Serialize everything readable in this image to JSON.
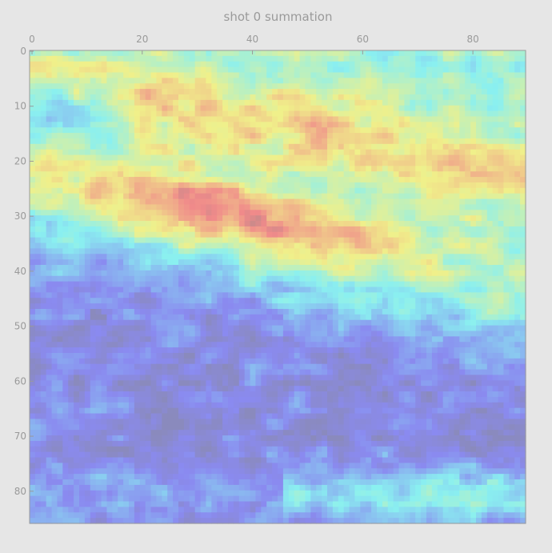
{
  "chart_data": {
    "type": "heatmap",
    "title": "shot 0 summation",
    "xlabel": "",
    "ylabel": "",
    "x_ticks": [
      0,
      20,
      40,
      60,
      80
    ],
    "y_ticks": [
      0,
      10,
      20,
      30,
      40,
      50,
      60,
      70,
      80
    ],
    "xlim": [
      0,
      90
    ],
    "ylim": [
      86,
      0
    ],
    "colormap": "jet",
    "colormap_alpha": 0.4,
    "x_tick_position": "top",
    "grid": false,
    "legend": "none",
    "colors": {
      "background": "#e6e6e6",
      "tick_text": "#9a9a9a",
      "axis_frame": "#9a9a9a"
    },
    "regions": [
      {
        "label": "low-value band (lower half)",
        "level": 0.15
      },
      {
        "label": "high-value streak (rows ~20-42, diagonal)",
        "level": 0.85
      },
      {
        "label": "mid-value bands",
        "level": 0.55
      }
    ]
  }
}
